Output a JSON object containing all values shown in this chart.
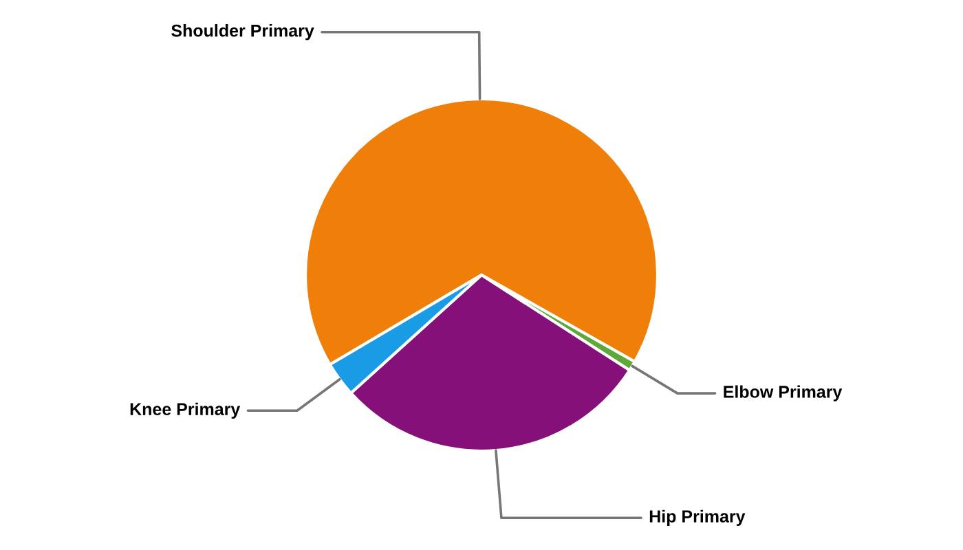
{
  "chart_data": {
    "type": "pie",
    "categories": [
      "Shoulder Primary",
      "Elbow Primary",
      "Hip Primary",
      "Knee Primary"
    ],
    "values": [
      66.7,
      0.9,
      29.2,
      3.2
    ],
    "colors": [
      "#f07f09",
      "#5ea83a",
      "#861079",
      "#1a9be6"
    ],
    "legend": false
  }
}
